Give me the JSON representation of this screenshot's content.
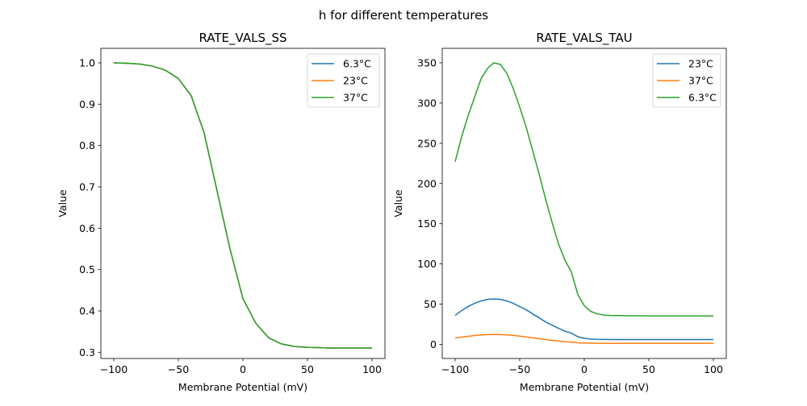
{
  "figure_title": "h for different temperatures",
  "chart_data": [
    {
      "type": "line",
      "title": "RATE_VALS_SS",
      "xlabel": "Membrane Potential (mV)",
      "ylabel": "Value",
      "xlim": [
        -110,
        110
      ],
      "ylim": [
        0.285,
        1.035
      ],
      "xticks": [
        -100,
        -50,
        0,
        50,
        100
      ],
      "xtick_labels": [
        "−100",
        "−50",
        "0",
        "50",
        "100"
      ],
      "yticks": [
        0.3,
        0.4,
        0.5,
        0.6,
        0.7,
        0.8,
        0.9,
        1.0
      ],
      "ytick_labels": [
        "0.3",
        "0.4",
        "0.5",
        "0.6",
        "0.7",
        "0.8",
        "0.9",
        "1.0"
      ],
      "grid": false,
      "legend_position": "top-right",
      "x": [
        -100,
        -90,
        -80,
        -70,
        -60,
        -50,
        -40,
        -30,
        -20,
        -10,
        0,
        10,
        20,
        30,
        40,
        50,
        60,
        70,
        80,
        90,
        100
      ],
      "series": [
        {
          "name": "6.3°C",
          "color": "#1f77b4",
          "values": [
            1.0,
            0.999,
            0.997,
            0.992,
            0.982,
            0.962,
            0.92,
            0.83,
            0.69,
            0.55,
            0.43,
            0.37,
            0.335,
            0.32,
            0.314,
            0.312,
            0.311,
            0.31,
            0.31,
            0.31,
            0.31
          ]
        },
        {
          "name": "23°C",
          "color": "#ff7f0e",
          "values": [
            1.0,
            0.999,
            0.997,
            0.992,
            0.982,
            0.962,
            0.92,
            0.83,
            0.69,
            0.55,
            0.43,
            0.37,
            0.335,
            0.32,
            0.314,
            0.312,
            0.311,
            0.31,
            0.31,
            0.31,
            0.31
          ]
        },
        {
          "name": "37°C",
          "color": "#2ca02c",
          "values": [
            1.0,
            0.999,
            0.997,
            0.992,
            0.982,
            0.962,
            0.92,
            0.83,
            0.69,
            0.55,
            0.43,
            0.37,
            0.335,
            0.32,
            0.314,
            0.312,
            0.311,
            0.31,
            0.31,
            0.31,
            0.31
          ]
        }
      ]
    },
    {
      "type": "line",
      "title": "RATE_VALS_TAU",
      "xlabel": "Membrane Potential (mV)",
      "ylabel": "Value",
      "xlim": [
        -110,
        110
      ],
      "ylim": [
        -17.5,
        368
      ],
      "xticks": [
        -100,
        -50,
        0,
        50,
        100
      ],
      "xtick_labels": [
        "−100",
        "−50",
        "0",
        "50",
        "100"
      ],
      "yticks": [
        0,
        50,
        100,
        150,
        200,
        250,
        300,
        350
      ],
      "ytick_labels": [
        "0",
        "50",
        "100",
        "150",
        "200",
        "250",
        "300",
        "350"
      ],
      "grid": false,
      "legend_position": "top-right",
      "x": [
        -100,
        -95,
        -90,
        -85,
        -80,
        -75,
        -70,
        -65,
        -60,
        -55,
        -50,
        -45,
        -40,
        -35,
        -30,
        -25,
        -20,
        -15,
        -10,
        -5,
        0,
        5,
        10,
        15,
        20,
        30,
        40,
        50,
        60,
        70,
        80,
        90,
        100
      ],
      "series": [
        {
          "name": "23°C",
          "color": "#1f77b4",
          "values": [
            36,
            42,
            47,
            51,
            54,
            56,
            56.5,
            56,
            54,
            51,
            47,
            43,
            38,
            33,
            28,
            24,
            20,
            16.5,
            14,
            9.5,
            7.5,
            6.7,
            6.3,
            6.1,
            6.0,
            6.0,
            6.0,
            6.0,
            6.0,
            6.0,
            6.0,
            6.0,
            6.0
          ]
        },
        {
          "name": "37°C",
          "color": "#ff7f0e",
          "values": [
            8,
            9,
            10,
            11,
            11.7,
            12.2,
            12.4,
            12.3,
            11.8,
            11.2,
            10.3,
            9.3,
            8.2,
            7.1,
            6.0,
            5.0,
            4.1,
            3.4,
            2.8,
            2.0,
            1.7,
            1.5,
            1.4,
            1.4,
            1.4,
            1.4,
            1.4,
            1.4,
            1.4,
            1.4,
            1.4,
            1.4,
            1.4
          ]
        },
        {
          "name": "6.3°C",
          "color": "#2ca02c",
          "values": [
            227,
            258,
            284,
            307,
            330,
            343,
            350,
            348,
            337,
            318,
            295,
            270,
            241,
            212,
            181,
            152,
            125,
            105,
            90,
            62,
            48,
            41,
            38,
            36.5,
            36,
            35.7,
            35.6,
            35.5,
            35.5,
            35.5,
            35.5,
            35.5,
            35.5
          ]
        }
      ]
    }
  ]
}
